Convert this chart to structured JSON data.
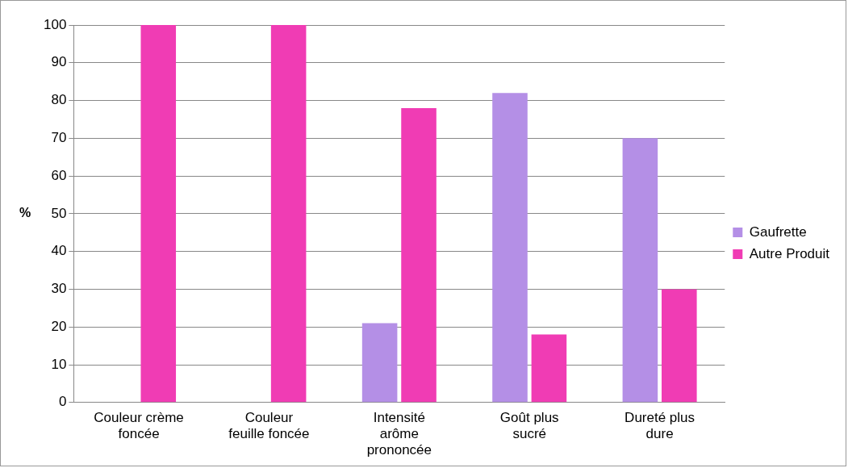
{
  "chart_data": {
    "type": "bar",
    "ylabel": "%",
    "categories": [
      "Couleur crème foncée",
      "Couleur feuille foncée",
      "Intensité arôme prononcée",
      "Goût plus sucré",
      "Dureté plus dure"
    ],
    "series": [
      {
        "name": "Gaufrette",
        "color": "#b48fe6",
        "values": [
          0,
          0,
          21,
          82,
          70
        ]
      },
      {
        "name": "Autre Produit",
        "color": "#f03cb4",
        "values": [
          100,
          100,
          78,
          18,
          30
        ]
      }
    ],
    "ylim": [
      0,
      100
    ],
    "yticks": [
      0,
      10,
      20,
      30,
      40,
      50,
      60,
      70,
      80,
      90,
      100
    ],
    "grid": "y",
    "legend": "right"
  }
}
